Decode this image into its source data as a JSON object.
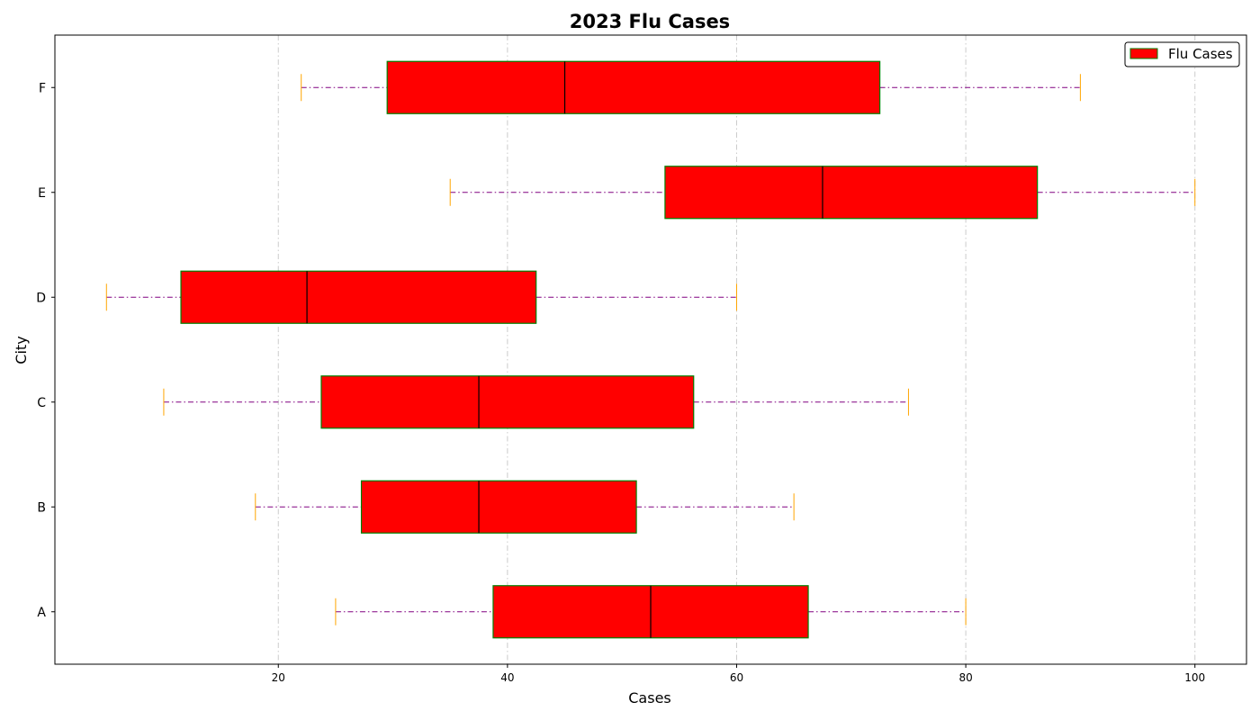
{
  "chart_data": {
    "type": "boxplot",
    "orientation": "horizontal",
    "title": "2023 Flu Cases",
    "xlabel": "Cases",
    "ylabel": "City",
    "xlim": [
      0.5,
      104.5
    ],
    "xticks": [
      20,
      40,
      60,
      80,
      100
    ],
    "grid": "vertical dashed",
    "legend": {
      "position": "top-right",
      "entries": [
        "Flu Cases"
      ]
    },
    "categories": [
      "A",
      "B",
      "C",
      "D",
      "E",
      "F"
    ],
    "series": [
      {
        "name": "Flu Cases",
        "boxes": [
          {
            "category": "A",
            "min": 25,
            "q1": 38.75,
            "median": 52.5,
            "q3": 66.25,
            "max": 80
          },
          {
            "category": "B",
            "min": 18,
            "q1": 27.25,
            "median": 37.5,
            "q3": 51.25,
            "max": 65
          },
          {
            "category": "C",
            "min": 10,
            "q1": 23.75,
            "median": 37.5,
            "q3": 56.25,
            "max": 75
          },
          {
            "category": "D",
            "min": 5,
            "q1": 11.5,
            "median": 22.5,
            "q3": 42.5,
            "max": 60
          },
          {
            "category": "E",
            "min": 35,
            "q1": 53.75,
            "median": 67.5,
            "q3": 86.25,
            "max": 100
          },
          {
            "category": "F",
            "min": 22,
            "q1": 29.5,
            "median": 45,
            "q3": 72.5,
            "max": 90
          }
        ]
      }
    ],
    "colors": {
      "box_fill": "#ff0000",
      "box_edge": "#008000",
      "median": "#000000",
      "whisker": "#800080",
      "cap": "#ffa500",
      "grid": "#cccccc"
    }
  }
}
